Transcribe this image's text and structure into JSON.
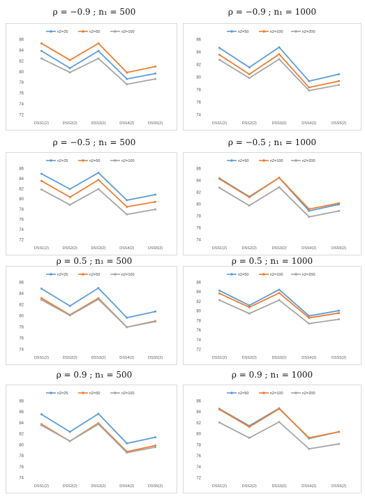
{
  "chart_data": [
    {
      "type": "line",
      "title": "ρ = −0.9 ; n₁ = 500",
      "categories": [
        "DSS1(2)",
        "DSS2(2)",
        "DSS3(2)",
        "DSS4(2)",
        "DSS5(2)"
      ],
      "ylim": [
        72,
        86
      ],
      "yticks": [
        72,
        74,
        76,
        78,
        80,
        82,
        84,
        86
      ],
      "legend": "top-center",
      "grid": false,
      "series": [
        {
          "name": "n2=25",
          "values": [
            83.8,
            80.6,
            83.8,
            78.6,
            79.6
          ]
        },
        {
          "name": "n2=50",
          "values": [
            85.2,
            82.1,
            85.2,
            79.8,
            80.9
          ]
        },
        {
          "name": "n2=100",
          "values": [
            82.4,
            79.8,
            82.4,
            77.6,
            78.6
          ]
        }
      ]
    },
    {
      "type": "line",
      "title": "ρ = −0.9 ; n₁ = 1000",
      "categories": [
        "DSS1(2)",
        "DSS2(2)",
        "DSS3(2)",
        "DSS4(2)",
        "DSS5(2)"
      ],
      "ylim": [
        74,
        86
      ],
      "yticks": [
        74,
        76,
        78,
        80,
        82,
        84,
        86
      ],
      "legend": "top-center",
      "grid": false,
      "series": [
        {
          "name": "n2=50",
          "values": [
            84.6,
            81.5,
            84.7,
            79.3,
            80.4
          ]
        },
        {
          "name": "n2=100",
          "values": [
            83.5,
            80.4,
            83.6,
            78.3,
            79.3
          ]
        },
        {
          "name": "n2=200",
          "values": [
            82.7,
            79.8,
            82.8,
            77.8,
            78.7
          ]
        }
      ]
    },
    {
      "type": "line",
      "title": "ρ = −0.5 ; n₁ = 500",
      "categories": [
        "DSS1(2)",
        "DSS2(2)",
        "DSS3(2)",
        "DSS4(2)",
        "DSS5(2)"
      ],
      "ylim": [
        72,
        86
      ],
      "yticks": [
        72,
        74,
        76,
        78,
        80,
        82,
        84,
        86
      ],
      "legend": "top-center",
      "grid": false,
      "series": [
        {
          "name": "n2=25",
          "values": [
            84.9,
            81.9,
            85.1,
            79.7,
            80.8
          ]
        },
        {
          "name": "n2=50",
          "values": [
            83.5,
            80.3,
            83.7,
            78.4,
            79.4
          ]
        },
        {
          "name": "n2=100",
          "values": [
            81.8,
            78.8,
            81.9,
            76.9,
            77.9
          ]
        }
      ]
    },
    {
      "type": "line",
      "title": "ρ = −0.5 ; n₁ = 1000",
      "categories": [
        "DSS1(2)",
        "DSS2(2)",
        "DSS3(2)",
        "DSS4(2)",
        "DSS5(2)"
      ],
      "ylim": [
        74,
        86
      ],
      "yticks": [
        74,
        76,
        78,
        80,
        82,
        84,
        86
      ],
      "legend": "top-center",
      "grid": false,
      "series": [
        {
          "name": "n2=50",
          "values": [
            84.3,
            81.2,
            84.4,
            78.8,
            79.9
          ]
        },
        {
          "name": "n2=100",
          "values": [
            84.2,
            81.1,
            84.4,
            79.1,
            80.1
          ]
        },
        {
          "name": "n2=200",
          "values": [
            82.7,
            79.7,
            82.8,
            77.8,
            78.8
          ]
        }
      ]
    },
    {
      "type": "line",
      "title": "ρ = 0.5 ; n₁ = 500",
      "categories": [
        "DSS1(2)",
        "DSS2(2)",
        "DSS3(2)",
        "DSS4(2)",
        "DSS5(2)"
      ],
      "ylim": [
        74,
        86
      ],
      "yticks": [
        74,
        76,
        78,
        80,
        82,
        84,
        86
      ],
      "legend": "top-center",
      "grid": false,
      "series": [
        {
          "name": "n2=25",
          "values": [
            84.8,
            81.7,
            84.9,
            79.6,
            80.7
          ]
        },
        {
          "name": "n2=50",
          "values": [
            83.1,
            80.1,
            83.1,
            77.9,
            79.0
          ]
        },
        {
          "name": "n2=100",
          "values": [
            82.8,
            80.0,
            82.9,
            77.9,
            78.9
          ]
        }
      ]
    },
    {
      "type": "line",
      "title": "ρ = 0.5 ; n₁ = 1000",
      "categories": [
        "DSS1(2)",
        "DSS2(2)",
        "DSS3(2)",
        "DSS4(2)",
        "DSS5(2)"
      ],
      "ylim": [
        72,
        86
      ],
      "yticks": [
        72,
        74,
        76,
        78,
        80,
        82,
        84,
        86
      ],
      "legend": "top-center",
      "grid": false,
      "series": [
        {
          "name": "n2=50",
          "values": [
            84.2,
            81.1,
            84.4,
            78.9,
            80.0
          ]
        },
        {
          "name": "n2=100",
          "values": [
            83.6,
            80.7,
            83.7,
            78.5,
            79.5
          ]
        },
        {
          "name": "n2=200",
          "values": [
            82.2,
            79.4,
            82.2,
            77.3,
            78.2
          ]
        }
      ]
    },
    {
      "type": "line",
      "title": "ρ = 0.9 ; n₁ = 500",
      "categories": [
        "DSS1(2)",
        "DSS2(2)",
        "DSS3(2)",
        "DSS4(2)",
        "DSS5(2)"
      ],
      "ylim": [
        74,
        88
      ],
      "yticks": [
        74,
        76,
        78,
        80,
        82,
        84,
        86,
        88
      ],
      "legend": "top-center",
      "grid": false,
      "series": [
        {
          "name": "n2=25",
          "values": [
            85.5,
            82.3,
            85.6,
            80.2,
            81.3
          ]
        },
        {
          "name": "n2=50",
          "values": [
            83.7,
            80.6,
            83.9,
            78.7,
            79.8
          ]
        },
        {
          "name": "n2=100",
          "values": [
            83.5,
            80.6,
            83.7,
            78.5,
            79.5
          ]
        }
      ]
    },
    {
      "type": "line",
      "title": "ρ = 0.9 ; n₁ = 1000",
      "categories": [
        "DSS1(2)",
        "DSS2(2)",
        "DSS3(2)",
        "DSS4(2)",
        "DSS5(2)"
      ],
      "ylim": [
        72,
        86
      ],
      "yticks": [
        72,
        74,
        76,
        78,
        80,
        82,
        84,
        86
      ],
      "legend": "top-center",
      "grid": false,
      "series": [
        {
          "name": "n2=50",
          "values": [
            84.5,
            81.4,
            84.6,
            79.1,
            80.3
          ]
        },
        {
          "name": "n2=100",
          "values": [
            84.4,
            81.2,
            84.5,
            79.2,
            80.3
          ]
        },
        {
          "name": "n2=200",
          "values": [
            82.0,
            79.2,
            82.1,
            77.2,
            78.1
          ]
        }
      ]
    }
  ],
  "colors": [
    "#5b9bd5",
    "#ed7d31",
    "#a5a5a5"
  ]
}
